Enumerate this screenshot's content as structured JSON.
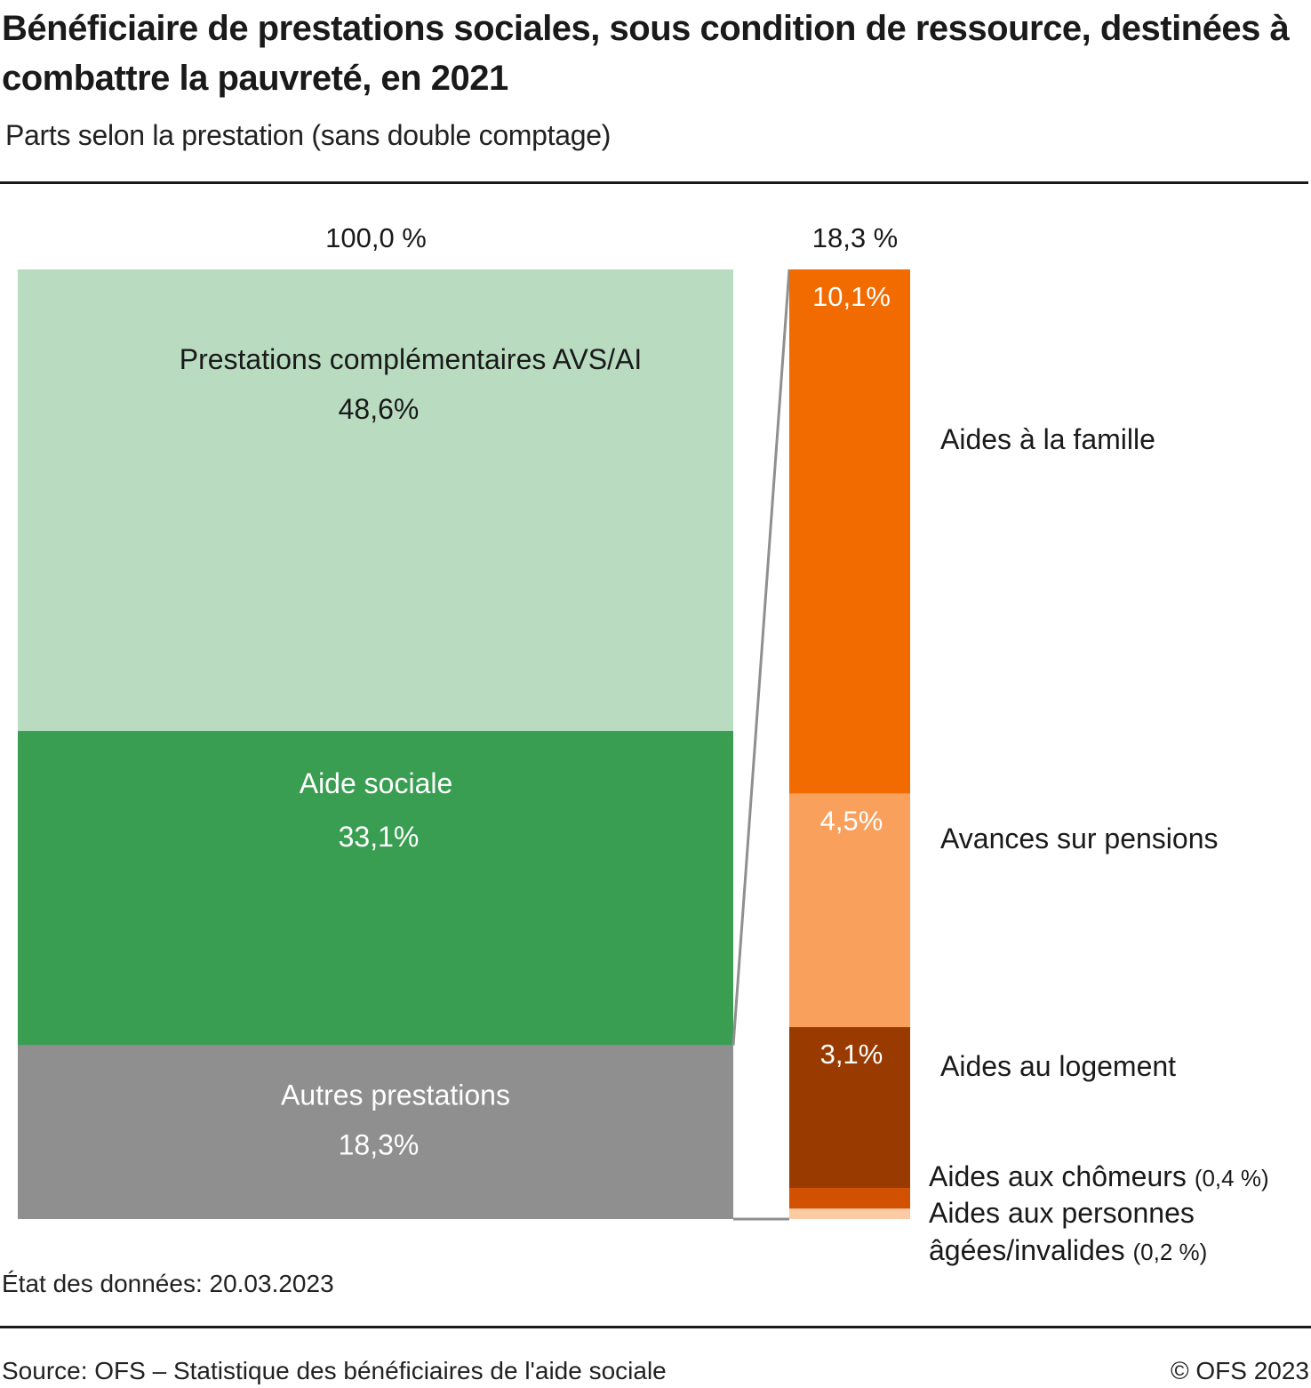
{
  "header": {
    "title": "Bénéficiaire de prestations sociales, sous condition de ressource, destinées à combattre la pauvreté, en 2021",
    "subtitle": "Parts selon la prestation (sans double comptage)"
  },
  "footer": {
    "note": "État des données: 20.03.2023",
    "source": "Source: OFS – Statistique des bénéficiaires de l'aide sociale",
    "copyright": "© OFS 2023"
  },
  "chart_data": {
    "type": "bar-of-bar (stacked)",
    "title": "Bénéficiaire de prestations sociales, sous condition de ressource, destinées à combattre la pauvreté, en 2021",
    "subtitle": "Parts selon la prestation (sans double comptage)",
    "unit": "%",
    "main_bar": {
      "total_label": "100,0 %",
      "total": 100.0,
      "segments": [
        {
          "name": "Prestations complémentaires AVS/AI",
          "value": 48.6,
          "label": "48,6%",
          "color": "#b9dcc1",
          "text_color": "#1a1a1a"
        },
        {
          "name": "Aide sociale",
          "value": 33.1,
          "label": "33,1%",
          "color": "#3a9e52",
          "text_color": "#ffffff"
        },
        {
          "name": "Autres prestations",
          "value": 18.3,
          "label": "18,3%",
          "color": "#8f8f8f",
          "text_color": "#ffffff"
        }
      ]
    },
    "detail_bar": {
      "total_label": "18,3 %",
      "total": 18.3,
      "exploded_from": "Autres prestations",
      "segments": [
        {
          "name": "Aides à la famille",
          "value": 10.1,
          "label": "10,1%",
          "legend": "Aides à la famille",
          "legend_suffix": "",
          "color": "#f26b00",
          "text_color": "#ffffff"
        },
        {
          "name": "Avances sur pensions",
          "value": 4.5,
          "label": "4,5%",
          "legend": "Avances sur pensions",
          "legend_suffix": "",
          "color": "#f8a05c",
          "text_color": "#ffffff"
        },
        {
          "name": "Aides au logement",
          "value": 3.1,
          "label": "3,1%",
          "legend": "Aides au logement",
          "legend_suffix": "",
          "color": "#993a00",
          "text_color": "#ffffff"
        },
        {
          "name": "Aides aux chômeurs",
          "value": 0.4,
          "label": "",
          "legend": "Aides aux chômeurs",
          "legend_suffix": "(0,4 %)",
          "color": "#d15100",
          "text_color": "#ffffff"
        },
        {
          "name": "Aides aux personnes âgées/invalides",
          "value": 0.2,
          "label": "",
          "legend": "Aides aux personnes âgées/invalides",
          "legend_suffix": "(0,2 %)",
          "color": "#fccaa3",
          "text_color": "#ffffff"
        }
      ]
    },
    "connector_color": "#8f8f8f"
  }
}
